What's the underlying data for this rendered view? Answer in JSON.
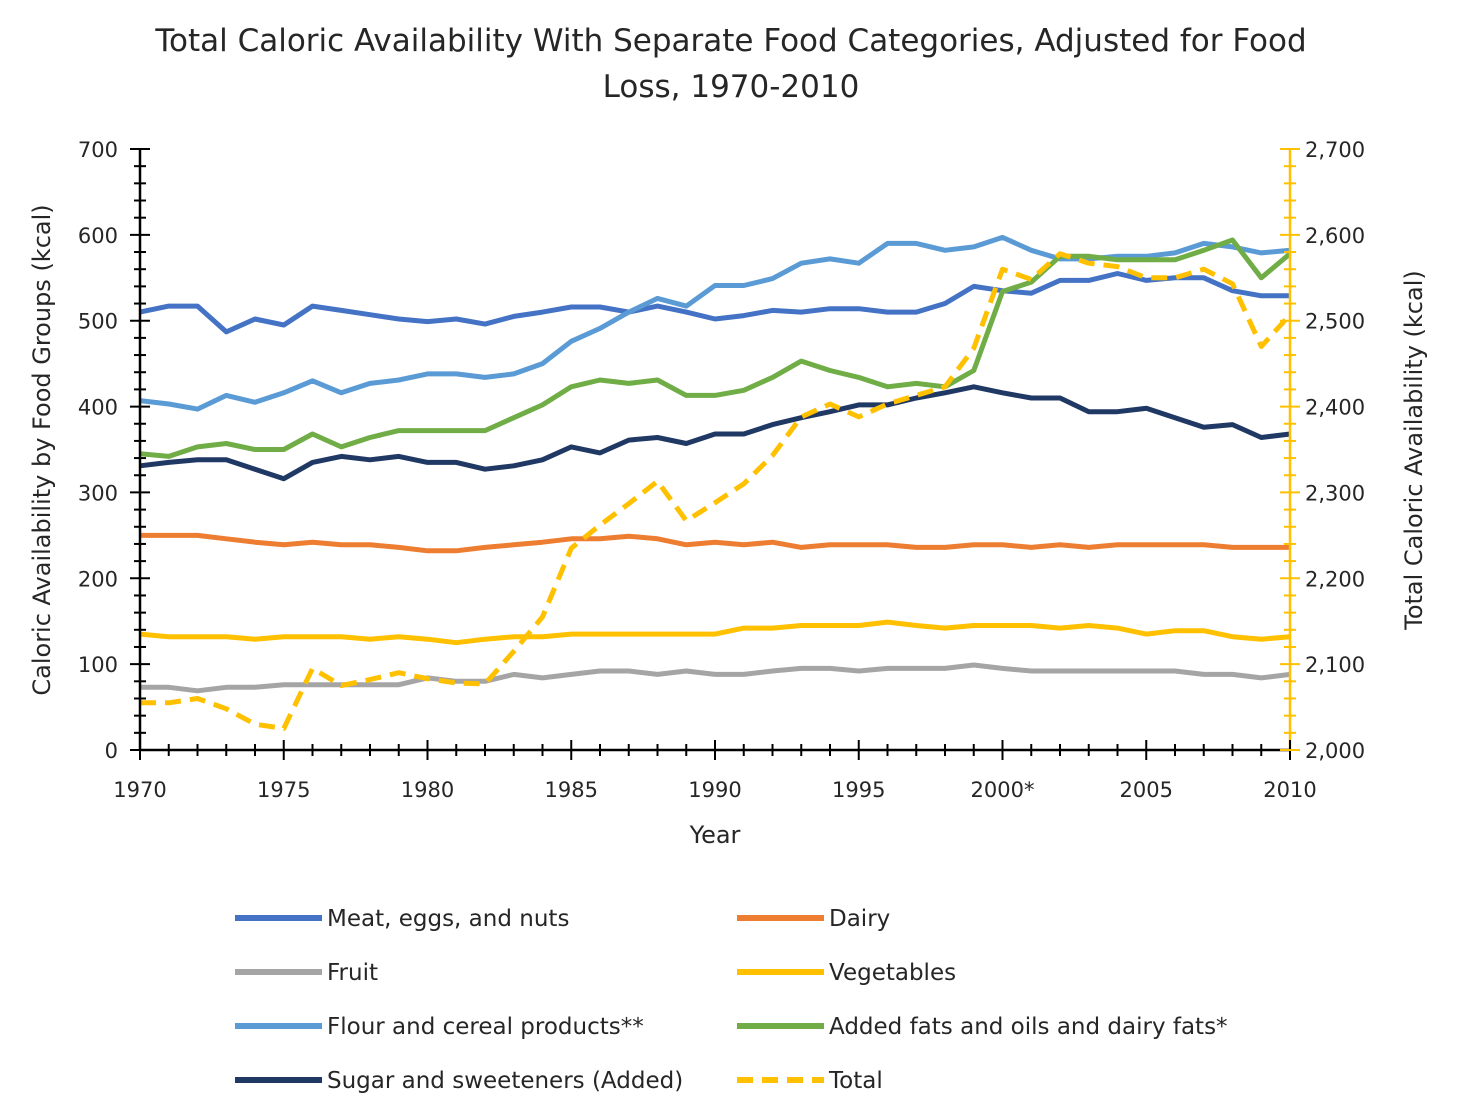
{
  "chart_data": {
    "type": "line",
    "title_line1": "Total Caloric Availability With Separate Food Categories, Adjusted for Food",
    "title_line2": "Loss, 1970-2010",
    "xlabel": "Year",
    "ylabel_left": "Caloric Availability by Food Groups (kcal)",
    "ylabel_right": "Total Caloric Availability (kcal)",
    "xlim": [
      1970,
      2010
    ],
    "ylim_left": [
      0,
      700
    ],
    "ylim_right": [
      2000,
      2700
    ],
    "x_tick_labels": [
      "1970",
      "1975",
      "1980",
      "1985",
      "1990",
      "1995",
      "2000*",
      "2005",
      "2010"
    ],
    "y_left_tick_labels": [
      "0",
      "100",
      "200",
      "300",
      "400",
      "500",
      "600",
      "700"
    ],
    "y_right_tick_labels": [
      "2,000",
      "2,100",
      "2,200",
      "2,300",
      "2,400",
      "2,500",
      "2,600",
      "2,700"
    ],
    "legend_placement": "bottom",
    "grid": false,
    "axis_color_right": "#FFC000",
    "x": [
      1970,
      1971,
      1972,
      1973,
      1974,
      1975,
      1976,
      1977,
      1978,
      1979,
      1980,
      1981,
      1982,
      1983,
      1984,
      1985,
      1986,
      1987,
      1988,
      1989,
      1990,
      1991,
      1992,
      1993,
      1994,
      1995,
      1996,
      1997,
      1998,
      1999,
      2000,
      2001,
      2002,
      2003,
      2004,
      2005,
      2006,
      2007,
      2008,
      2009,
      2010
    ],
    "series": [
      {
        "name": "Meat, eggs, and nuts",
        "axis": "left",
        "color": "#4472C4",
        "dashed": false,
        "values": [
          510,
          517,
          517,
          487,
          502,
          495,
          517,
          512,
          507,
          502,
          499,
          502,
          496,
          505,
          510,
          516,
          516,
          510,
          517,
          510,
          502,
          506,
          512,
          510,
          514,
          514,
          510,
          510,
          520,
          540,
          535,
          532,
          547,
          547,
          555,
          547,
          550,
          550,
          535,
          529,
          529
        ]
      },
      {
        "name": "Dairy",
        "axis": "left",
        "color": "#ED7D31",
        "dashed": false,
        "values": [
          250,
          250,
          250,
          246,
          242,
          239,
          242,
          239,
          239,
          236,
          232,
          232,
          236,
          239,
          242,
          246,
          246,
          249,
          246,
          239,
          242,
          239,
          242,
          236,
          239,
          239,
          239,
          236,
          236,
          239,
          239,
          236,
          239,
          236,
          239,
          239,
          239,
          239,
          236,
          236,
          236
        ]
      },
      {
        "name": "Fruit",
        "axis": "left",
        "color": "#A5A5A5",
        "dashed": false,
        "values": [
          73,
          73,
          69,
          73,
          73,
          76,
          76,
          76,
          76,
          76,
          84,
          80,
          80,
          88,
          84,
          88,
          92,
          92,
          88,
          92,
          88,
          88,
          92,
          95,
          95,
          92,
          95,
          95,
          95,
          99,
          95,
          92,
          92,
          92,
          92,
          92,
          92,
          88,
          88,
          84,
          88
        ]
      },
      {
        "name": "Vegetables",
        "axis": "left",
        "color": "#FFC000",
        "dashed": false,
        "values": [
          135,
          132,
          132,
          132,
          129,
          132,
          132,
          132,
          129,
          132,
          129,
          125,
          129,
          132,
          132,
          135,
          135,
          135,
          135,
          135,
          135,
          142,
          142,
          145,
          145,
          145,
          149,
          145,
          142,
          145,
          145,
          145,
          142,
          145,
          142,
          135,
          139,
          139,
          132,
          129,
          132
        ]
      },
      {
        "name": "Flour and cereal products**",
        "axis": "left",
        "color": "#5B9BD5",
        "dashed": false,
        "values": [
          407,
          403,
          397,
          413,
          405,
          416,
          430,
          416,
          427,
          431,
          438,
          438,
          434,
          438,
          450,
          476,
          491,
          510,
          526,
          517,
          541,
          541,
          549,
          567,
          572,
          567,
          590,
          590,
          582,
          586,
          597,
          582,
          572,
          572,
          575,
          575,
          579,
          590,
          586,
          579,
          582
        ]
      },
      {
        "name": "Added fats and oils and dairy fats*",
        "axis": "left",
        "color": "#70AD47",
        "dashed": false,
        "values": [
          345,
          342,
          353,
          357,
          350,
          350,
          368,
          353,
          364,
          372,
          372,
          372,
          372,
          387,
          402,
          423,
          431,
          427,
          431,
          413,
          413,
          419,
          434,
          453,
          442,
          434,
          423,
          427,
          423,
          442,
          534,
          545,
          575,
          575,
          571,
          571,
          571,
          582,
          594,
          550,
          578
        ]
      },
      {
        "name": "Sugar and sweeteners (Added)",
        "axis": "left",
        "color": "#203864",
        "dashed": false,
        "values": [
          331,
          335,
          338,
          338,
          327,
          316,
          335,
          342,
          338,
          342,
          335,
          335,
          327,
          331,
          338,
          353,
          346,
          361,
          364,
          357,
          368,
          368,
          379,
          387,
          394,
          402,
          402,
          410,
          416,
          423,
          416,
          410,
          410,
          394,
          394,
          398,
          387,
          376,
          379,
          364,
          368
        ]
      },
      {
        "name": "Total",
        "axis": "right",
        "color": "#FFC000",
        "dashed": true,
        "values": [
          2055,
          2055,
          2060,
          2048,
          2030,
          2025,
          2095,
          2075,
          2082,
          2090,
          2083,
          2078,
          2077,
          2115,
          2155,
          2235,
          2262,
          2287,
          2313,
          2267,
          2288,
          2310,
          2343,
          2388,
          2403,
          2388,
          2403,
          2413,
          2423,
          2468,
          2560,
          2548,
          2578,
          2567,
          2563,
          2550,
          2550,
          2560,
          2543,
          2470,
          2507
        ]
      }
    ]
  }
}
